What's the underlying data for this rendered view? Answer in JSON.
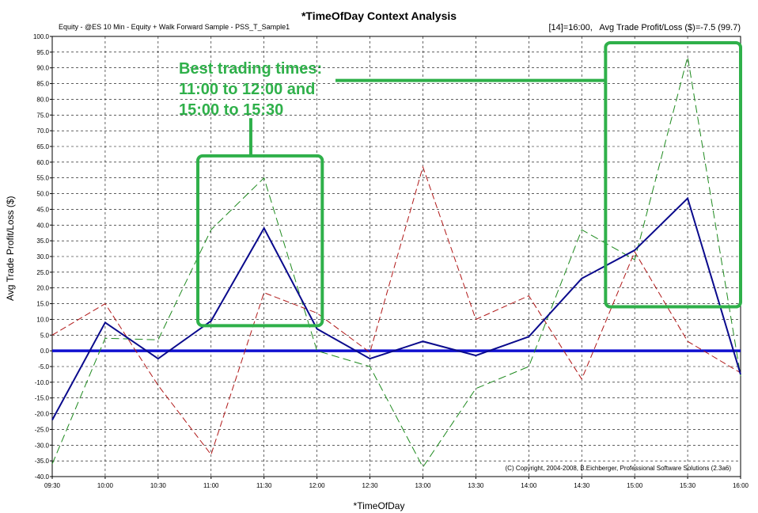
{
  "header": {
    "title": "*TimeOfDay Context Analysis",
    "left_info": "Equity - @ES 10 Min - Equity + Walk Forward Sample - PSS_T_Sample1",
    "right_info": "[14]=16:00,   Avg Trade Profit/Loss ($)=-7.5 (99.7)"
  },
  "annotation": {
    "callout_text": "Best trading times:\n11:00 to 12:00 and\n15:00 to 15:30",
    "color": "#2fb04a"
  },
  "colors": {
    "main_series": "#0a0a8c",
    "zero_line": "#1010d0",
    "red_series": "#b01818",
    "green_series": "#1e8a1e",
    "grid": "#000000"
  },
  "chart_data": {
    "type": "line",
    "title": "*TimeOfDay Context Analysis",
    "xlabel": "*TimeOfDay",
    "ylabel": "Avg Trade Profit/Loss ($)",
    "ylim": [
      -40,
      100
    ],
    "yticks": [
      "100.0",
      "95.0",
      "90.0",
      "85.0",
      "80.0",
      "75.0",
      "70.0",
      "65.0",
      "60.0",
      "55.0",
      "50.0",
      "45.0",
      "40.0",
      "35.0",
      "30.0",
      "25.0",
      "20.0",
      "15.0",
      "10.0",
      "5.0",
      "0.0",
      "-5.0",
      "-10.0",
      "-15.0",
      "-20.0",
      "-25.0",
      "-30.0",
      "-35.0",
      "-40.0"
    ],
    "categories": [
      "09:30",
      "10:00",
      "10:30",
      "11:00",
      "11:30",
      "12:00",
      "12:30",
      "13:00",
      "13:30",
      "14:00",
      "14:30",
      "15:00",
      "15:30",
      "16:00"
    ],
    "grid": true,
    "series": [
      {
        "key": "main",
        "style": "solid",
        "values": [
          -22,
          9,
          -2.5,
          9.5,
          39,
          7,
          -2.5,
          3,
          -1.5,
          4.5,
          23,
          32,
          48.5,
          -7.5
        ]
      },
      {
        "key": "red",
        "style": "dashed",
        "values": [
          5,
          15,
          -11,
          -33,
          18.5,
          12,
          -0.5,
          58.5,
          10,
          17.5,
          -9,
          31.5,
          3,
          -7
        ]
      },
      {
        "key": "green",
        "style": "dashed",
        "values": [
          -36,
          4,
          3.5,
          38.5,
          55,
          0,
          -5,
          -37,
          -12,
          -5,
          38.5,
          29,
          93.5,
          -8
        ]
      }
    ],
    "reference_line": 0,
    "annotation": "(C) Copyright, 2004-2008, B.Eichberger, Professional Software Solutions (2.3a6)"
  }
}
